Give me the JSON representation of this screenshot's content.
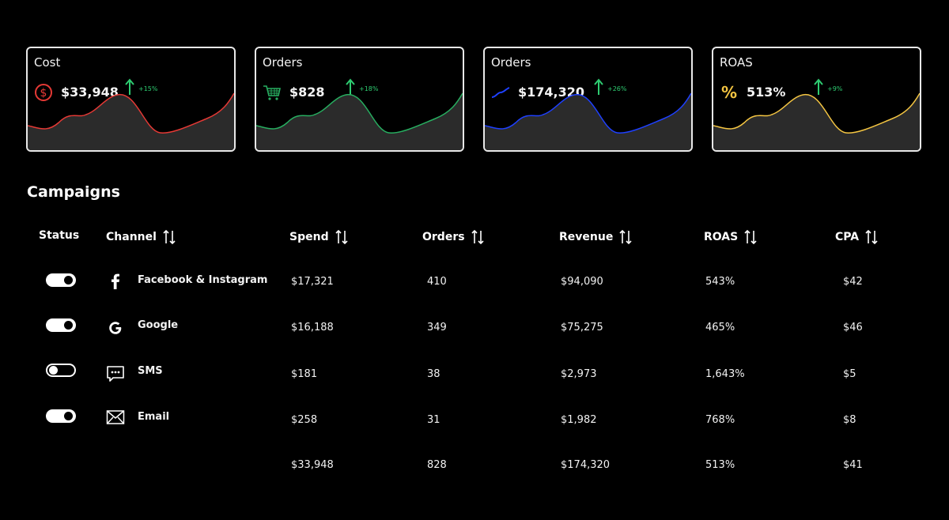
{
  "cards": [
    {
      "title": "Cost",
      "value": "$33,948",
      "change": "+15%",
      "color": "#e53935",
      "icon": "dollar-circle-icon"
    },
    {
      "title": "Orders",
      "value": "$828",
      "change": "+18%",
      "color": "#27ae60",
      "icon": "shopping-cart-icon"
    },
    {
      "title": "Orders",
      "value": "$174,320",
      "change": "+26%",
      "color": "#1e40ff",
      "icon": "trend-line-icon"
    },
    {
      "title": "ROAS",
      "value": "513%",
      "change": "+9%",
      "color": "#f4c542",
      "icon": "percent-icon"
    }
  ],
  "campaigns": {
    "title": "Campaigns",
    "headers": {
      "status": "Status",
      "channel": "Channel",
      "spend": "Spend",
      "orders": "Orders",
      "revenue": "Revenue",
      "roas": "ROAS",
      "cpa": "CPA"
    },
    "rows": [
      {
        "enabled": true,
        "channel": "Facebook & Instagram",
        "icon": "facebook-icon",
        "spend": "$17,321",
        "orders": "410",
        "revenue": "$94,090",
        "roas": "543%",
        "cpa": "$42"
      },
      {
        "enabled": true,
        "channel": "Google",
        "icon": "google-icon",
        "spend": "$16,188",
        "orders": "349",
        "revenue": "$75,275",
        "roas": "465%",
        "cpa": "$46"
      },
      {
        "enabled": false,
        "channel": "SMS",
        "icon": "sms-icon",
        "spend": "$181",
        "orders": "38",
        "revenue": "$2,973",
        "roas": "1,643%",
        "cpa": "$5"
      },
      {
        "enabled": true,
        "channel": "Email",
        "icon": "email-icon",
        "spend": "$258",
        "orders": "31",
        "revenue": "$1,982",
        "roas": "768%",
        "cpa": "$8"
      }
    ],
    "totals": {
      "spend": "$33,948",
      "orders": "828",
      "revenue": "$174,320",
      "roas": "513%",
      "cpa": "$41"
    }
  }
}
